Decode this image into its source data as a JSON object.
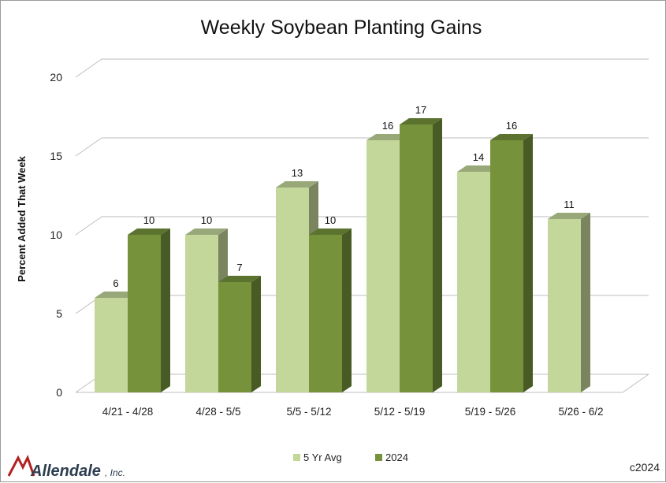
{
  "chart_data": {
    "type": "bar",
    "title": "Weekly Soybean Planting Gains",
    "ylabel": "Percent Added That Week",
    "xlabel": "",
    "ylim": [
      0,
      20
    ],
    "yticks": [
      0,
      5,
      10,
      15,
      20
    ],
    "categories": [
      "4/21 - 4/28",
      "4/28 - 5/5",
      "5/5 - 5/12",
      "5/12 - 5/19",
      "5/19 - 5/26",
      "5/26 - 6/2"
    ],
    "series": [
      {
        "name": "5 Yr Avg",
        "values": [
          6,
          10,
          13,
          16,
          14,
          11
        ],
        "labels": [
          "6",
          "10",
          "13",
          "16",
          "14",
          "11"
        ],
        "color": "#c4d79b"
      },
      {
        "name": "2024",
        "values": [
          10,
          7,
          10,
          17,
          16,
          null
        ],
        "labels": [
          "10",
          "7",
          "10",
          "17",
          "16",
          ""
        ],
        "color": "#76933c"
      }
    ],
    "grid": true,
    "legend": "bottom-center",
    "style": "3d-column"
  },
  "footer": {
    "logo_text": "Allendale",
    "logo_suffix": ", Inc.",
    "copyright": "c2024"
  }
}
